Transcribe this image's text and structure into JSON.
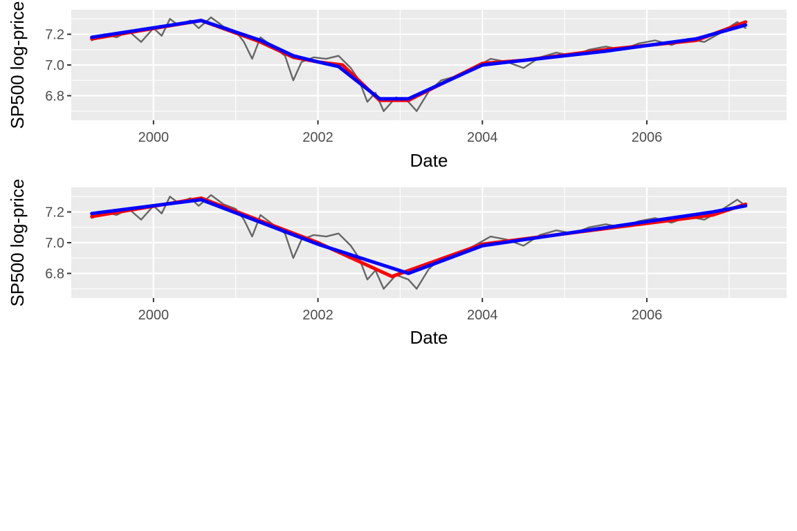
{
  "chart_data": [
    {
      "type": "line",
      "xlabel": "Date",
      "ylabel": "SP500 log-price",
      "xlim": [
        1999.0,
        2007.7
      ],
      "ylim": [
        6.64,
        7.36
      ],
      "x_ticks": [
        2000,
        2002,
        2004,
        2006
      ],
      "x_tick_labels": [
        "2000",
        "2002",
        "2004",
        "2006"
      ],
      "y_ticks": [
        6.8,
        7.0,
        7.2
      ],
      "y_tick_labels": [
        "6.8",
        "7.0",
        "7.2"
      ],
      "grid": true,
      "legend": "none",
      "series": [
        {
          "color": "#666666",
          "x": [
            1999.25,
            1999.4,
            1999.55,
            1999.7,
            1999.85,
            2000.0,
            2000.1,
            2000.2,
            2000.3,
            2000.45,
            2000.55,
            2000.7,
            2000.85,
            2001.0,
            2001.1,
            2001.2,
            2001.3,
            2001.45,
            2001.6,
            2001.7,
            2001.8,
            2001.95,
            2002.1,
            2002.25,
            2002.4,
            2002.5,
            2002.6,
            2002.7,
            2002.8,
            2002.95,
            2003.1,
            2003.2,
            2003.35,
            2003.5,
            2003.7,
            2003.9,
            2004.1,
            2004.3,
            2004.5,
            2004.7,
            2004.9,
            2005.1,
            2005.3,
            2005.5,
            2005.7,
            2005.9,
            2006.1,
            2006.3,
            2006.5,
            2006.7,
            2006.9,
            2007.1,
            2007.2
          ],
          "y": [
            7.16,
            7.2,
            7.18,
            7.22,
            7.15,
            7.24,
            7.19,
            7.3,
            7.26,
            7.29,
            7.24,
            7.31,
            7.25,
            7.22,
            7.15,
            7.04,
            7.18,
            7.12,
            7.06,
            6.9,
            7.02,
            7.05,
            7.04,
            7.06,
            6.98,
            6.9,
            6.76,
            6.82,
            6.7,
            6.79,
            6.76,
            6.7,
            6.83,
            6.9,
            6.93,
            6.98,
            7.04,
            7.02,
            6.98,
            7.05,
            7.08,
            7.06,
            7.1,
            7.12,
            7.1,
            7.14,
            7.16,
            7.13,
            7.17,
            7.15,
            7.21,
            7.28,
            7.24
          ]
        },
        {
          "color": "#ff0000",
          "x": [
            1999.25,
            2000.58,
            2001.3,
            2001.7,
            2002.0,
            2002.3,
            2002.75,
            2003.1,
            2004.0,
            2004.5,
            2005.5,
            2006.6,
            2007.2
          ],
          "y": [
            7.17,
            7.29,
            7.15,
            7.05,
            7.02,
            7.0,
            6.77,
            6.77,
            7.01,
            7.03,
            7.1,
            7.16,
            7.28
          ]
        },
        {
          "color": "#0000ff",
          "x": [
            1999.25,
            2000.58,
            2001.3,
            2001.7,
            2002.0,
            2002.25,
            2002.75,
            2003.1,
            2004.0,
            2004.5,
            2005.5,
            2006.6,
            2007.2
          ],
          "y": [
            7.18,
            7.29,
            7.16,
            7.06,
            7.02,
            6.99,
            6.78,
            6.78,
            7.0,
            7.03,
            7.09,
            7.17,
            7.26
          ]
        }
      ]
    },
    {
      "type": "line",
      "xlabel": "Date",
      "ylabel": "SP500 log-price",
      "xlim": [
        1999.0,
        2007.7
      ],
      "ylim": [
        6.64,
        7.36
      ],
      "x_ticks": [
        2000,
        2002,
        2004,
        2006
      ],
      "x_tick_labels": [
        "2000",
        "2002",
        "2004",
        "2006"
      ],
      "y_ticks": [
        6.8,
        7.0,
        7.2
      ],
      "y_tick_labels": [
        "6.8",
        "7.0",
        "7.2"
      ],
      "grid": true,
      "legend": "none",
      "series": [
        {
          "color": "#666666",
          "x": [
            1999.25,
            1999.4,
            1999.55,
            1999.7,
            1999.85,
            2000.0,
            2000.1,
            2000.2,
            2000.3,
            2000.45,
            2000.55,
            2000.7,
            2000.85,
            2001.0,
            2001.1,
            2001.2,
            2001.3,
            2001.45,
            2001.6,
            2001.7,
            2001.8,
            2001.95,
            2002.1,
            2002.25,
            2002.4,
            2002.5,
            2002.6,
            2002.7,
            2002.8,
            2002.95,
            2003.1,
            2003.2,
            2003.35,
            2003.5,
            2003.7,
            2003.9,
            2004.1,
            2004.3,
            2004.5,
            2004.7,
            2004.9,
            2005.1,
            2005.3,
            2005.5,
            2005.7,
            2005.9,
            2006.1,
            2006.3,
            2006.5,
            2006.7,
            2006.9,
            2007.1,
            2007.2
          ],
          "y": [
            7.16,
            7.2,
            7.18,
            7.22,
            7.15,
            7.24,
            7.19,
            7.3,
            7.26,
            7.29,
            7.24,
            7.31,
            7.25,
            7.22,
            7.15,
            7.04,
            7.18,
            7.12,
            7.06,
            6.9,
            7.02,
            7.05,
            7.04,
            7.06,
            6.98,
            6.9,
            6.76,
            6.82,
            6.7,
            6.79,
            6.76,
            6.7,
            6.83,
            6.9,
            6.93,
            6.98,
            7.04,
            7.02,
            6.98,
            7.05,
            7.08,
            7.06,
            7.1,
            7.12,
            7.1,
            7.14,
            7.16,
            7.13,
            7.17,
            7.15,
            7.21,
            7.28,
            7.24
          ]
        },
        {
          "color": "#ff0000",
          "x": [
            1999.25,
            2000.58,
            2002.0,
            2002.9,
            2004.0,
            2006.8,
            2007.2
          ],
          "y": [
            7.17,
            7.29,
            7.0,
            6.78,
            6.99,
            7.18,
            7.25
          ]
        },
        {
          "color": "#0000ff",
          "x": [
            1999.25,
            2000.58,
            2002.0,
            2003.1,
            2004.0,
            2006.8,
            2007.2
          ],
          "y": [
            7.19,
            7.28,
            6.99,
            6.8,
            6.98,
            7.2,
            7.24
          ]
        }
      ]
    }
  ]
}
